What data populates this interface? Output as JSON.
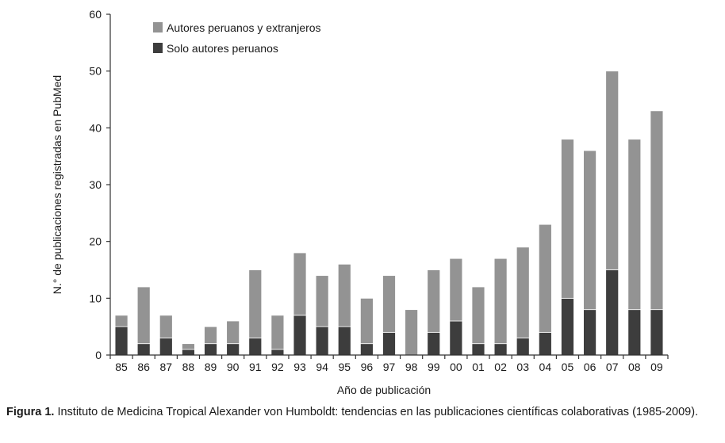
{
  "chart_data": {
    "type": "bar",
    "stacked": true,
    "categories": [
      "85",
      "86",
      "87",
      "88",
      "89",
      "90",
      "91",
      "92",
      "93",
      "94",
      "95",
      "96",
      "97",
      "98",
      "99",
      "00",
      "01",
      "02",
      "03",
      "04",
      "05",
      "06",
      "07",
      "08",
      "09"
    ],
    "series": [
      {
        "name": "Solo autores peruanos",
        "color": "#3d3d3d",
        "values": [
          5,
          2,
          3,
          1,
          2,
          2,
          3,
          1,
          7,
          5,
          5,
          2,
          4,
          0,
          4,
          6,
          2,
          2,
          3,
          4,
          10,
          8,
          15,
          8,
          8
        ]
      },
      {
        "name": "Autores peruanos y extranjeros",
        "color": "#939393",
        "values": [
          2,
          10,
          4,
          1,
          3,
          4,
          12,
          6,
          11,
          9,
          11,
          8,
          10,
          8,
          11,
          11,
          10,
          15,
          16,
          19,
          28,
          28,
          35,
          30,
          35
        ]
      }
    ],
    "totals": [
      7,
      12,
      7,
      2,
      5,
      6,
      15,
      7,
      18,
      14,
      16,
      10,
      14,
      8,
      15,
      17,
      12,
      17,
      19,
      23,
      38,
      36,
      50,
      38,
      43
    ],
    "title": "",
    "xlabel": "Año de publicación",
    "ylabel": "N.° de publicaciones registradas en PubMed",
    "ylim": [
      0,
      60
    ],
    "yticks": [
      0,
      10,
      20,
      30,
      40,
      50,
      60
    ],
    "grid": false,
    "legend_position": "top-left",
    "legend_order": [
      "Autores peruanos y extranjeros",
      "Solo autores peruanos"
    ]
  },
  "caption": {
    "label": "Figura 1.",
    "text": " Instituto de Medicina Tropical Alexander von Humboldt: tendencias en las publicaciones científicas colaborativas (1985-2009)."
  }
}
